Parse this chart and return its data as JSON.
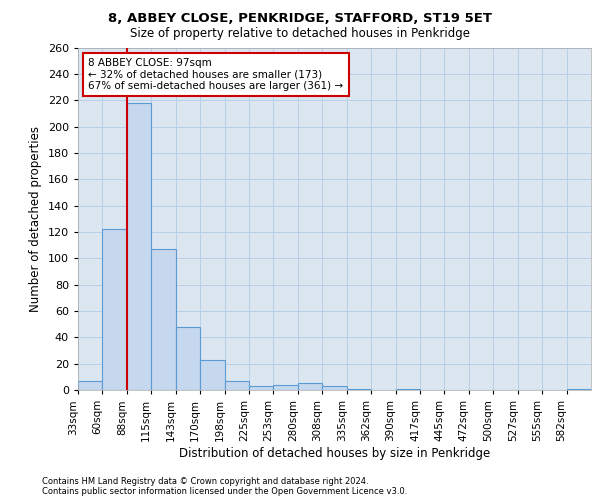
{
  "title1": "8, ABBEY CLOSE, PENKRIDGE, STAFFORD, ST19 5ET",
  "title2": "Size of property relative to detached houses in Penkridge",
  "xlabel": "Distribution of detached houses by size in Penkridge",
  "ylabel": "Number of detached properties",
  "bin_labels": [
    "33sqm",
    "60sqm",
    "88sqm",
    "115sqm",
    "143sqm",
    "170sqm",
    "198sqm",
    "225sqm",
    "253sqm",
    "280sqm",
    "308sqm",
    "335sqm",
    "362sqm",
    "390sqm",
    "417sqm",
    "445sqm",
    "472sqm",
    "500sqm",
    "527sqm",
    "555sqm",
    "582sqm"
  ],
  "values": [
    7,
    122,
    218,
    107,
    48,
    23,
    7,
    3,
    4,
    5,
    3,
    1,
    0,
    1,
    0,
    0,
    0,
    0,
    0,
    0,
    1
  ],
  "bar_color": "#c5d8ee",
  "bar_edge_color": "#5b9bd5",
  "grid_color": "#b8cfe8",
  "background_color": "#dce6f1",
  "vline_color": "#cc0000",
  "annotation_title": "8 ABBEY CLOSE: 97sqm",
  "annotation_line1": "← 32% of detached houses are smaller (173)",
  "annotation_line2": "67% of semi-detached houses are larger (361) →",
  "annotation_box_color": "#ffffff",
  "annotation_box_edge": "#cc0000",
  "ylim": [
    0,
    260
  ],
  "yticks": [
    0,
    20,
    40,
    60,
    80,
    100,
    120,
    140,
    160,
    180,
    200,
    220,
    240,
    260
  ],
  "footer1": "Contains HM Land Registry data © Crown copyright and database right 2024.",
  "footer2": "Contains public sector information licensed under the Open Government Licence v3.0."
}
